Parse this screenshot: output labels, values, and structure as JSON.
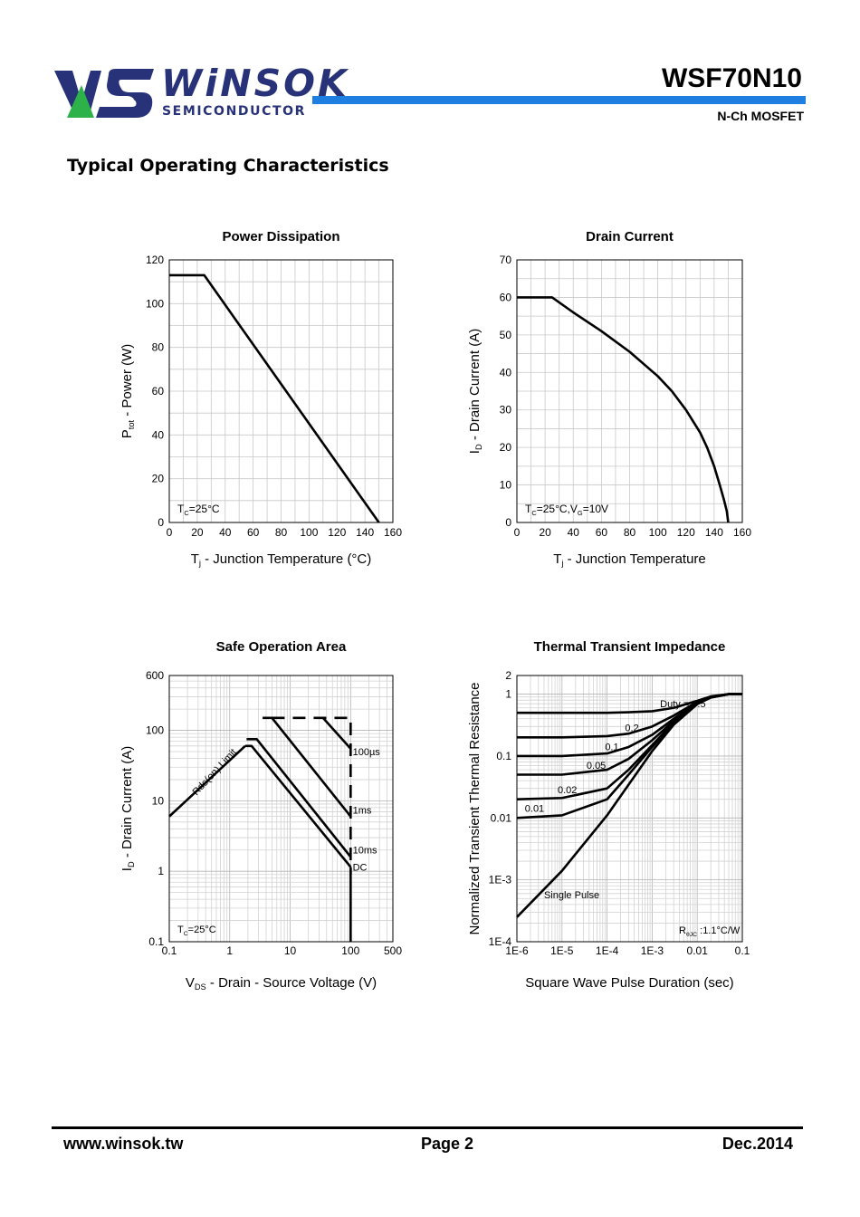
{
  "header": {
    "brand": "WiNSOK",
    "brand_sub": "SEMICONDUCTOR",
    "model": "WSF70N10",
    "device_type": "N-Ch MOSFET",
    "colors": {
      "brand_blue": "#283278",
      "brand_green": "#2db24a",
      "bar_blue": "#1e7fe0"
    }
  },
  "section_title": "Typical Operating Characteristics",
  "footer": {
    "url": "www.winsok.tw",
    "page": "Page  2",
    "date": "Dec.2014"
  },
  "chart_data": [
    {
      "type": "line",
      "title": "Power Dissipation",
      "ylabel_main": "P",
      "ylabel_sub": "tot",
      "ylabel_rest": " - Power (W)",
      "xlabel_main": "T",
      "xlabel_sub": "j",
      "xlabel_rest": " - Junction Temperature (°C)",
      "xlim": [
        0,
        160
      ],
      "ylim": [
        0,
        120
      ],
      "x_ticks": [
        0,
        20,
        40,
        60,
        80,
        100,
        120,
        140,
        160
      ],
      "y_ticks": [
        0,
        20,
        40,
        60,
        80,
        100,
        120
      ],
      "condition_main": "T",
      "condition_sub": "C",
      "condition_rest": "=25°C",
      "series": [
        {
          "name": "Ptot",
          "x": [
            0,
            25,
            150
          ],
          "y": [
            113,
            113,
            0
          ]
        }
      ]
    },
    {
      "type": "line",
      "title": "Drain Current",
      "ylabel_main": "I",
      "ylabel_sub": "D",
      "ylabel_rest": " - Drain Current (A)",
      "xlabel_main": "T",
      "xlabel_sub": "j",
      "xlabel_rest": " - Junction Temperature",
      "xlim": [
        0,
        160
      ],
      "ylim": [
        0,
        70
      ],
      "x_ticks": [
        0,
        20,
        40,
        60,
        80,
        100,
        120,
        140,
        160
      ],
      "y_ticks": [
        0,
        10,
        20,
        30,
        40,
        50,
        60,
        70
      ],
      "condition": [
        "T",
        "C",
        "=25°C,V",
        "G",
        "=10V"
      ],
      "series": [
        {
          "name": "ID",
          "x": [
            0,
            25,
            40,
            60,
            80,
            100,
            110,
            120,
            130,
            135,
            140,
            144,
            147,
            149,
            150
          ],
          "y": [
            60,
            60,
            56,
            51,
            45.5,
            39,
            35,
            30,
            24,
            20,
            15,
            10,
            6,
            3,
            0
          ]
        }
      ]
    },
    {
      "type": "line",
      "scale": "log-log",
      "title": "Safe Operation Area",
      "ylabel_main": "I",
      "ylabel_sub": "D",
      "ylabel_rest": " - Drain Current (A)",
      "xlabel_main": "V",
      "xlabel_sub": "DS",
      "xlabel_rest": " - Drain - Source Voltage (V)",
      "xlim": [
        0.1,
        500
      ],
      "ylim": [
        0.1,
        600
      ],
      "x_ticks": [
        0.1,
        1,
        10,
        100,
        500
      ],
      "x_tick_labels": [
        "0.1",
        "1",
        "10",
        "100",
        "500"
      ],
      "y_ticks": [
        0.1,
        1,
        10,
        100,
        600
      ],
      "y_tick_labels": [
        "0.1",
        "1",
        "10",
        "100",
        "600"
      ],
      "condition_main": "T",
      "condition_sub": "C",
      "condition_rest": "=25°C",
      "limit_label": "Rds(on) Limit",
      "series": [
        {
          "name": "Rds(on) Limit",
          "dashed": false,
          "x": [
            0.1,
            1.8
          ],
          "y": [
            6,
            60
          ]
        },
        {
          "name": "DC",
          "label": "DC",
          "x": [
            1.8,
            2.3,
            100
          ],
          "y": [
            60,
            60,
            1.15
          ]
        },
        {
          "name": "10ms",
          "label": "10ms",
          "x": [
            1.9,
            2.8,
            100
          ],
          "y": [
            75,
            75,
            1.6
          ]
        },
        {
          "name": "1ms",
          "label": "1ms",
          "x": [
            3.5,
            5,
            100
          ],
          "y": [
            150,
            150,
            6
          ]
        },
        {
          "name": "100µs",
          "label": "100µs",
          "x": [
            35,
            100
          ],
          "y": [
            150,
            55
          ]
        },
        {
          "name": "limit-dashed",
          "dashed": true,
          "x": [
            5,
            100,
            100
          ],
          "y": [
            150,
            150,
            0.9
          ]
        },
        {
          "name": "vds-max",
          "dashed": false,
          "x": [
            100,
            100
          ],
          "y": [
            1.15,
            0.1
          ]
        }
      ]
    },
    {
      "type": "line",
      "scale": "log-log",
      "title": "Thermal Transient Impedance",
      "ylabel": "Normalized Transient Thermal Resistance",
      "xlabel": "Square Wave Pulse Duration (sec)",
      "xlim": [
        1e-06,
        0.1
      ],
      "ylim": [
        0.0001,
        2
      ],
      "x_ticks": [
        1e-06,
        1e-05,
        0.0001,
        0.001,
        0.01,
        0.1
      ],
      "x_tick_labels": [
        "1E-6",
        "1E-5",
        "1E-4",
        "1E-3",
        "0.01",
        "0.1"
      ],
      "y_ticks": [
        0.0001,
        0.001,
        0.01,
        0.1,
        1,
        2
      ],
      "y_tick_labels": [
        "1E-4",
        "1E-3",
        "0.01",
        "0.1",
        "1",
        "2"
      ],
      "rth_label": [
        "R",
        "θJC",
        " :1.1°C/W"
      ],
      "series": [
        {
          "name": "Duty = 0.5",
          "label": "Duty = 0.5",
          "x": [
            1e-06,
            1e-05,
            0.0001,
            0.0003,
            0.001,
            0.003,
            0.01,
            0.02,
            0.05,
            0.1
          ],
          "y": [
            0.5,
            0.5,
            0.5,
            0.51,
            0.53,
            0.6,
            0.78,
            0.92,
            1.0,
            1.0
          ]
        },
        {
          "name": "0.2",
          "label": "0.2",
          "x": [
            1e-06,
            1e-05,
            0.0001,
            0.0003,
            0.001,
            0.003,
            0.01,
            0.02,
            0.05,
            0.1
          ],
          "y": [
            0.2,
            0.2,
            0.21,
            0.23,
            0.3,
            0.45,
            0.75,
            0.9,
            1.0,
            1.0
          ]
        },
        {
          "name": "0.1",
          "label": "0.1",
          "x": [
            1e-06,
            1e-05,
            0.0001,
            0.0003,
            0.001,
            0.003,
            0.01,
            0.02,
            0.05,
            0.1
          ],
          "y": [
            0.1,
            0.1,
            0.11,
            0.14,
            0.22,
            0.4,
            0.73,
            0.9,
            1.0,
            1.0
          ]
        },
        {
          "name": "0.05",
          "label": "0.05",
          "x": [
            1e-06,
            1e-05,
            0.0001,
            0.0003,
            0.001,
            0.003,
            0.01,
            0.02,
            0.05,
            0.1
          ],
          "y": [
            0.05,
            0.05,
            0.06,
            0.09,
            0.18,
            0.37,
            0.72,
            0.89,
            1.0,
            1.0
          ]
        },
        {
          "name": "0.02",
          "label": "0.02",
          "x": [
            1e-06,
            1e-05,
            0.0001,
            0.0003,
            0.001,
            0.003,
            0.01,
            0.02,
            0.05,
            0.1
          ],
          "y": [
            0.02,
            0.021,
            0.03,
            0.06,
            0.15,
            0.35,
            0.71,
            0.89,
            1.0,
            1.0
          ]
        },
        {
          "name": "0.01",
          "label": "0.01",
          "x": [
            1e-06,
            1e-05,
            0.0001,
            0.0003,
            0.001,
            0.003,
            0.01,
            0.02,
            0.05,
            0.1
          ],
          "y": [
            0.01,
            0.011,
            0.02,
            0.05,
            0.14,
            0.34,
            0.7,
            0.88,
            1.0,
            1.0
          ]
        },
        {
          "name": "Single Pulse",
          "label": "Single Pulse",
          "x": [
            1e-06,
            1e-05,
            0.0001,
            0.001,
            0.003,
            0.01,
            0.02,
            0.05,
            0.1
          ],
          "y": [
            0.00025,
            0.0014,
            0.011,
            0.12,
            0.32,
            0.69,
            0.88,
            1.0,
            1.0
          ]
        }
      ]
    }
  ]
}
